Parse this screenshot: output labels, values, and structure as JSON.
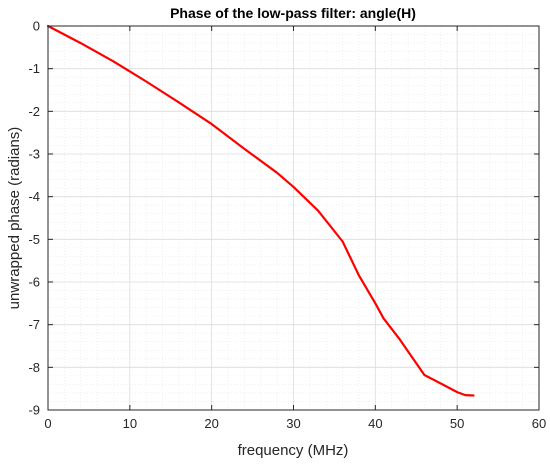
{
  "chart_data": {
    "type": "line",
    "title": "Phase of the low-pass filter: angle(H)",
    "xlabel": "frequency (MHz)",
    "ylabel": "unwrapped phase (radians)",
    "xlim": [
      0,
      60
    ],
    "ylim": [
      -9,
      0
    ],
    "xticks": [
      0,
      10,
      20,
      30,
      40,
      50,
      60
    ],
    "yticks": [
      0,
      -1,
      -2,
      -3,
      -4,
      -5,
      -6,
      -7,
      -8,
      -9
    ],
    "grid": "major-and-minor",
    "series": [
      {
        "color": "#ff0000",
        "x": [
          0,
          4,
          8,
          12,
          16,
          20,
          24,
          28,
          30,
          33,
          36,
          38,
          40,
          41,
          43,
          46,
          48,
          50,
          51,
          52
        ],
        "y": [
          0,
          -0.4,
          -0.83,
          -1.3,
          -1.79,
          -2.3,
          -2.88,
          -3.44,
          -3.77,
          -4.33,
          -5.05,
          -5.85,
          -6.5,
          -6.85,
          -7.35,
          -8.18,
          -8.38,
          -8.58,
          -8.65,
          -8.66
        ]
      }
    ]
  }
}
